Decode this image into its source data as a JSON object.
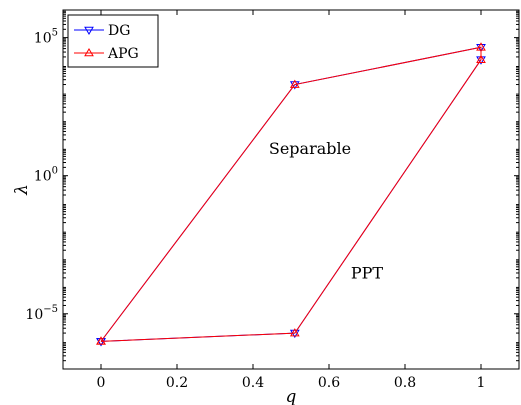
{
  "chart_data": {
    "type": "line",
    "xlabel": "q",
    "ylabel": "λ",
    "y_scale": "log",
    "xlim": [
      -0.1,
      1.1
    ],
    "ylim_exponent": [
      -7,
      6
    ],
    "x_ticks": [
      0,
      0.2,
      0.4,
      0.6,
      0.8,
      1
    ],
    "x_tick_labels": [
      "0",
      "0.2",
      "0.4",
      "0.6",
      "0.8",
      "1"
    ],
    "y_ticks_exponent": [
      -5,
      0,
      5
    ],
    "y_tick_labels": [
      {
        "base": "10",
        "exp": "−5"
      },
      {
        "base": "10",
        "exp": "0"
      },
      {
        "base": "10",
        "exp": "5"
      }
    ],
    "grid": false,
    "legend_position": "top-left",
    "annotations": [
      {
        "text": "Separable",
        "x": 0.55,
        "y_exponent": 1.0
      },
      {
        "text": "PPT",
        "x": 0.7,
        "y_exponent": -3.5
      }
    ],
    "series": [
      {
        "name": "DG",
        "color": "#0000ff",
        "marker": "triangle-down",
        "points": [
          {
            "x": 0,
            "y_exponent": -6.0
          },
          {
            "x": 0.51,
            "y_exponent": 3.3
          },
          {
            "x": 1,
            "y_exponent": 4.65
          },
          {
            "x": 1,
            "y_exponent": 4.2
          },
          {
            "x": 0.51,
            "y_exponent": -5.7
          },
          {
            "x": 0,
            "y_exponent": -6.0
          }
        ]
      },
      {
        "name": "APG",
        "color": "#ff0000",
        "marker": "triangle-up",
        "points": [
          {
            "x": 0,
            "y_exponent": -6.0
          },
          {
            "x": 0.51,
            "y_exponent": 3.3
          },
          {
            "x": 1,
            "y_exponent": 4.65
          },
          {
            "x": 1,
            "y_exponent": 4.2
          },
          {
            "x": 0.51,
            "y_exponent": -5.7
          },
          {
            "x": 0,
            "y_exponent": -6.0
          }
        ]
      }
    ]
  }
}
